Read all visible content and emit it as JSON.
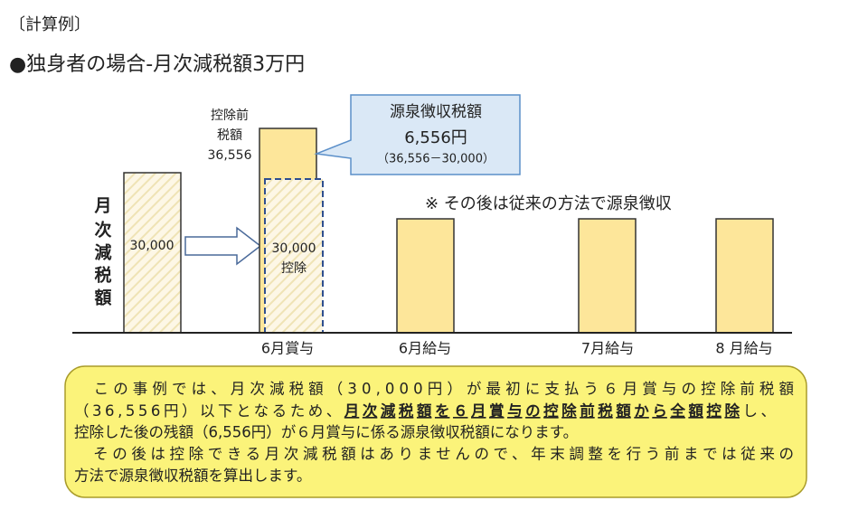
{
  "header": {
    "label": "〔計算例〕",
    "title": "●独身者の場合-月次減税額3万円"
  },
  "diagram": {
    "y_axis_label": [
      "月",
      "次",
      "減",
      "税",
      "額"
    ],
    "bar1_label": "30,000",
    "bar2_side_label": [
      "控除前",
      "税額",
      "36,556"
    ],
    "bar2_deduction": [
      "30,000",
      "控除"
    ],
    "callout": {
      "title": "源泉徴収税額",
      "amount": "6,556円",
      "formula": "（36,556－30,000）"
    },
    "note": "※ その後は従来の方法で源泉徴収",
    "x_labels": [
      "6月賞与",
      "6月給与",
      "7月給与",
      "8 月給与"
    ]
  },
  "explanation": {
    "lines": [
      [
        "　この事例では、月次減税額（30,000円）が最初に支払う６月賞与の控除前税額"
      ],
      [
        "（36,556円）以下となるため、",
        "月次減税額を６月賞与の控除前税額から全額控除",
        "し、"
      ],
      [
        "控除した後の残額（6,556円）が６月賞与に係る源泉徴収税額になります。"
      ],
      [
        "　その後は控除できる月次減税額はありませんので、年末調整を行う前までは従来の"
      ],
      [
        "方法で源泉徴収税額を算出します。"
      ]
    ]
  }
}
